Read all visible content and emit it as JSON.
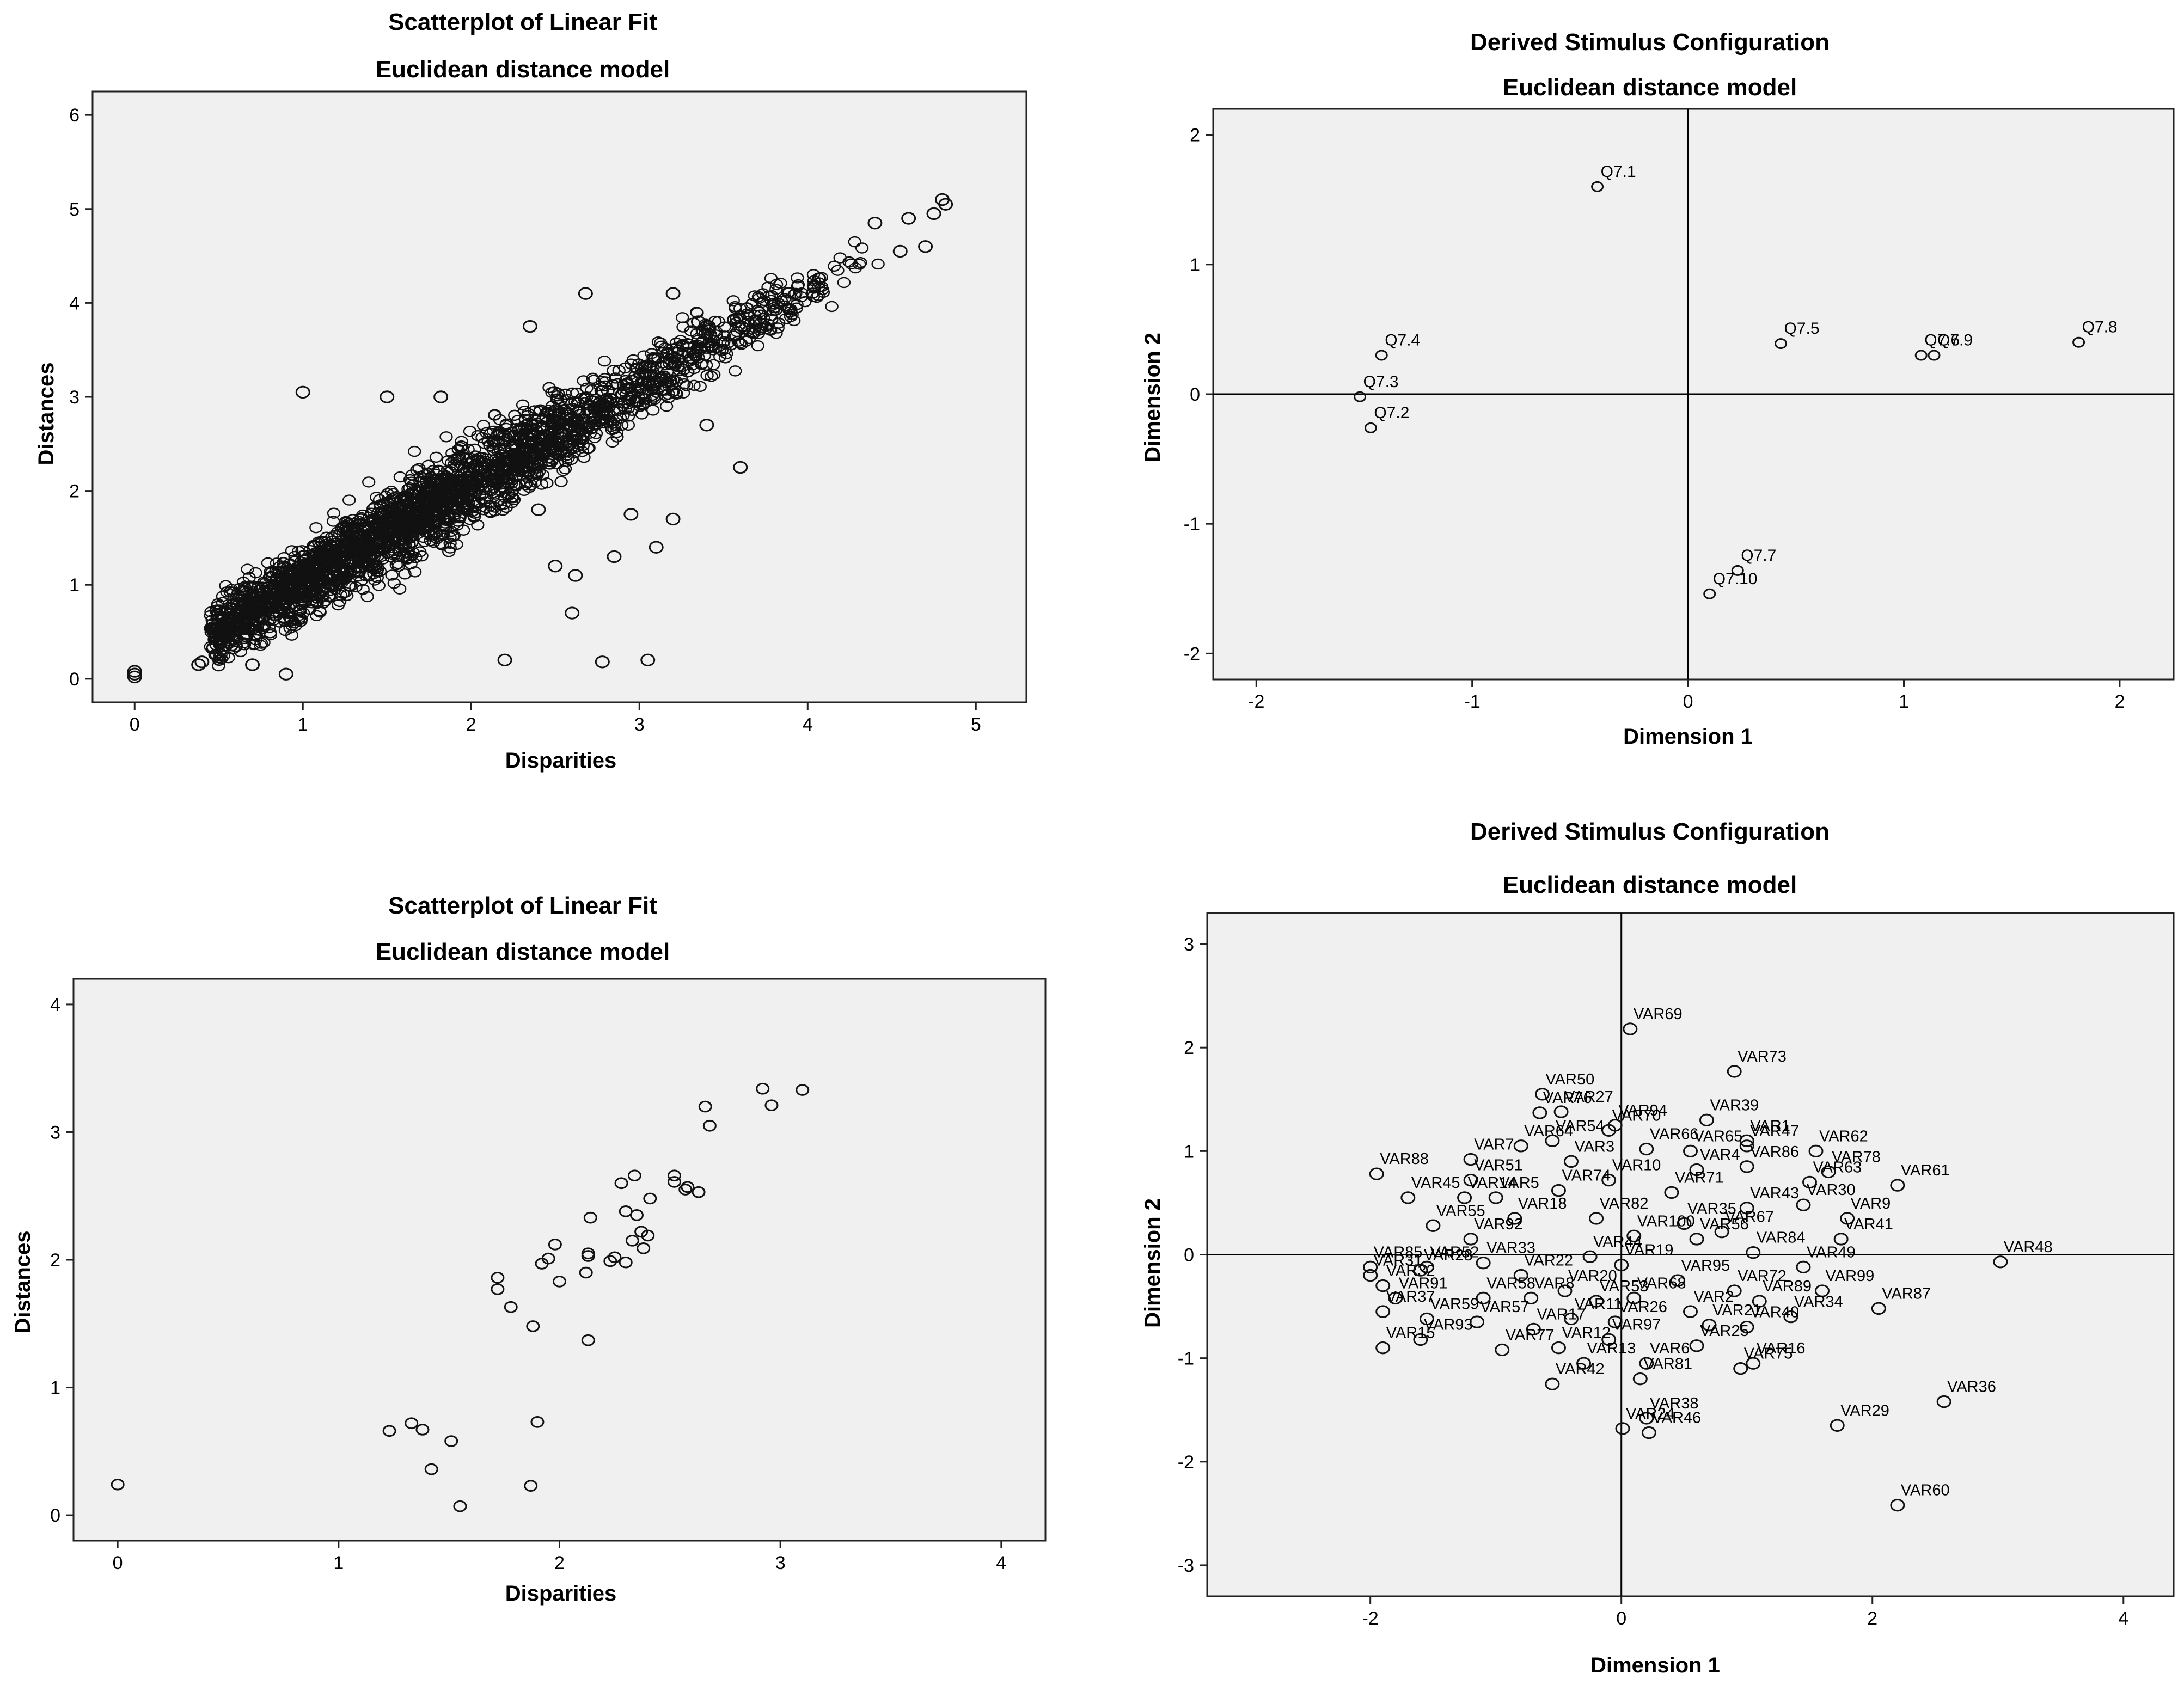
{
  "chart_data": [
    {
      "id": "tl",
      "type": "scatter",
      "title": "Scatterplot of Linear Fit",
      "subtitle": "Euclidean distance model",
      "xlabel": "Disparities",
      "ylabel": "Distances",
      "xlim": [
        -0.25,
        5.3
      ],
      "ylim": [
        -0.25,
        6.25
      ],
      "xticks": [
        0,
        1,
        2,
        3,
        4,
        5
      ],
      "yticks": [
        0,
        1,
        2,
        3,
        4,
        5,
        6
      ],
      "background": "#ebebeb",
      "density_note": "dense cloud of several thousand points along the diagonal",
      "points": [
        [
          0,
          0.02
        ],
        [
          0,
          0.05
        ],
        [
          0,
          0.08
        ],
        [
          0.38,
          0.15
        ],
        [
          0.4,
          0.18
        ],
        [
          4.82,
          5.05
        ],
        [
          4.8,
          5.1
        ],
        [
          4.75,
          4.95
        ],
        [
          4.6,
          4.9
        ],
        [
          4.55,
          4.55
        ],
        [
          4.7,
          4.6
        ],
        [
          4.4,
          4.85
        ],
        [
          1.0,
          3.05
        ],
        [
          1.5,
          3.0
        ],
        [
          1.82,
          3.0
        ],
        [
          2.35,
          3.75
        ],
        [
          2.68,
          4.1
        ],
        [
          3.2,
          4.1
        ],
        [
          3.35,
          3.8
        ],
        [
          3.6,
          2.25
        ],
        [
          3.1,
          1.4
        ],
        [
          3.05,
          0.2
        ],
        [
          2.78,
          0.18
        ],
        [
          2.5,
          1.2
        ],
        [
          2.2,
          0.2
        ],
        [
          2.6,
          0.7
        ],
        [
          2.95,
          1.75
        ],
        [
          3.4,
          2.7
        ],
        [
          2.62,
          1.1
        ],
        [
          2.4,
          1.8
        ],
        [
          2.85,
          1.3
        ],
        [
          3.2,
          1.7
        ],
        [
          0.7,
          0.15
        ],
        [
          0.9,
          0.05
        ],
        [
          0.6,
          0.35
        ]
      ]
    },
    {
      "id": "tr",
      "type": "scatter",
      "title": "Derived Stimulus Configuration",
      "subtitle": "Euclidean distance model",
      "xlabel": "Dimension 1",
      "ylabel": "Dimension 2",
      "xlim": [
        -2.2,
        2.25
      ],
      "ylim": [
        -2.2,
        2.2
      ],
      "xticks": [
        -2,
        -1,
        0,
        1,
        2
      ],
      "yticks": [
        -2,
        -1,
        0,
        1,
        2
      ],
      "points": [
        {
          "label": "Q7.1",
          "x": -0.42,
          "y": 1.6
        },
        {
          "label": "Q7.4",
          "x": -1.42,
          "y": 0.3
        },
        {
          "label": "Q7.3",
          "x": -1.52,
          "y": -0.02
        },
        {
          "label": "Q7.2",
          "x": -1.47,
          "y": -0.26
        },
        {
          "label": "Q7.5",
          "x": 0.43,
          "y": 0.39
        },
        {
          "label": "Q7.9",
          "x": 1.14,
          "y": 0.3
        },
        {
          "label": "Q7.6",
          "x": 1.08,
          "y": 0.3
        },
        {
          "label": "Q7.8",
          "x": 1.81,
          "y": 0.4
        },
        {
          "label": "Q7.7",
          "x": 0.23,
          "y": -1.36
        },
        {
          "label": "Q7.10",
          "x": 0.1,
          "y": -1.54
        }
      ]
    },
    {
      "id": "bl",
      "type": "scatter",
      "title": "Scatterplot of Linear Fit",
      "subtitle": "Euclidean distance model",
      "xlabel": "Disparities",
      "ylabel": "Distances",
      "xlim": [
        -0.2,
        4.2
      ],
      "ylim": [
        -0.2,
        4.2
      ],
      "xticks": [
        0,
        1,
        2,
        3,
        4
      ],
      "yticks": [
        0,
        1,
        2,
        3,
        4
      ],
      "points": [
        [
          0,
          0.24
        ],
        [
          1.23,
          0.66
        ],
        [
          1.33,
          0.72
        ],
        [
          1.38,
          0.67
        ],
        [
          1.42,
          0.36
        ],
        [
          1.51,
          0.58
        ],
        [
          1.55,
          0.07
        ],
        [
          1.87,
          0.23
        ],
        [
          1.9,
          0.73
        ],
        [
          1.72,
          1.86
        ],
        [
          1.72,
          1.77
        ],
        [
          1.78,
          1.63
        ],
        [
          1.88,
          1.48
        ],
        [
          1.92,
          1.97
        ],
        [
          1.95,
          2.01
        ],
        [
          1.98,
          2.12
        ],
        [
          2.0,
          1.83
        ],
        [
          2.12,
          1.9
        ],
        [
          2.13,
          2.03
        ],
        [
          2.13,
          2.05
        ],
        [
          2.14,
          2.33
        ],
        [
          2.13,
          1.37
        ],
        [
          2.23,
          1.99
        ],
        [
          2.25,
          2.02
        ],
        [
          2.28,
          2.6
        ],
        [
          2.3,
          1.98
        ],
        [
          2.3,
          2.38
        ],
        [
          2.33,
          2.15
        ],
        [
          2.34,
          2.66
        ],
        [
          2.35,
          2.35
        ],
        [
          2.37,
          2.22
        ],
        [
          2.38,
          2.09
        ],
        [
          2.4,
          2.19
        ],
        [
          2.41,
          2.48
        ],
        [
          2.52,
          2.66
        ],
        [
          2.52,
          2.61
        ],
        [
          2.57,
          2.55
        ],
        [
          2.58,
          2.57
        ],
        [
          2.63,
          2.53
        ],
        [
          2.66,
          3.2
        ],
        [
          2.68,
          3.05
        ],
        [
          2.92,
          3.34
        ],
        [
          2.96,
          3.21
        ],
        [
          3.1,
          3.33
        ]
      ]
    },
    {
      "id": "br",
      "type": "scatter",
      "title": "Derived Stimulus Configuration",
      "subtitle": "Euclidean distance model",
      "xlabel": "Dimension 1",
      "ylabel": "Dimension 2",
      "xlim": [
        -3.3,
        4.4
      ],
      "ylim": [
        -3.3,
        3.3
      ],
      "xticks": [
        -2,
        0,
        2,
        4
      ],
      "yticks": [
        -3,
        -2,
        -1,
        0,
        1,
        2,
        3
      ],
      "points": [
        {
          "label": "VAR69",
          "x": 0.07,
          "y": 2.18
        },
        {
          "label": "VAR73",
          "x": 0.9,
          "y": 1.77
        },
        {
          "label": "VAR50",
          "x": -0.63,
          "y": 1.55
        },
        {
          "label": "VAR27",
          "x": -0.48,
          "y": 1.38
        },
        {
          "label": "VAR94",
          "x": -0.05,
          "y": 1.25
        },
        {
          "label": "VAR39",
          "x": 0.68,
          "y": 1.3
        },
        {
          "label": "VAR1",
          "x": 1.0,
          "y": 1.1
        },
        {
          "label": "VAR62",
          "x": 1.55,
          "y": 1.0
        },
        {
          "label": "VAR76",
          "x": -0.65,
          "y": 1.37
        },
        {
          "label": "VAR70",
          "x": -0.1,
          "y": 1.2
        },
        {
          "label": "VAR47",
          "x": 1.0,
          "y": 1.05
        },
        {
          "label": "VAR7",
          "x": -1.2,
          "y": 0.92
        },
        {
          "label": "VAR64",
          "x": -0.8,
          "y": 1.05
        },
        {
          "label": "VAR54",
          "x": -0.55,
          "y": 1.1
        },
        {
          "label": "VAR66",
          "x": 0.2,
          "y": 1.02
        },
        {
          "label": "VAR65",
          "x": 0.55,
          "y": 1.0
        },
        {
          "label": "VAR3",
          "x": -0.4,
          "y": 0.9
        },
        {
          "label": "VAR88",
          "x": -1.95,
          "y": 0.78
        },
        {
          "label": "VAR4",
          "x": 0.6,
          "y": 0.82
        },
        {
          "label": "VAR86",
          "x": 1.0,
          "y": 0.85
        },
        {
          "label": "VAR78",
          "x": 1.65,
          "y": 0.8
        },
        {
          "label": "VAR61",
          "x": 2.2,
          "y": 0.67
        },
        {
          "label": "VAR51",
          "x": -1.2,
          "y": 0.72
        },
        {
          "label": "VAR10",
          "x": -0.1,
          "y": 0.72
        },
        {
          "label": "VAR63",
          "x": 1.5,
          "y": 0.7
        },
        {
          "label": "VAR45",
          "x": -1.7,
          "y": 0.55
        },
        {
          "label": "VAR14",
          "x": -1.25,
          "y": 0.55
        },
        {
          "label": "VAR5",
          "x": -1.0,
          "y": 0.55
        },
        {
          "label": "VAR74",
          "x": -0.5,
          "y": 0.62
        },
        {
          "label": "VAR71",
          "x": 0.4,
          "y": 0.6
        },
        {
          "label": "VAR43",
          "x": 1.0,
          "y": 0.45
        },
        {
          "label": "VAR30",
          "x": 1.45,
          "y": 0.48
        },
        {
          "label": "VAR9",
          "x": 1.8,
          "y": 0.35
        },
        {
          "label": "VAR55",
          "x": -1.5,
          "y": 0.28
        },
        {
          "label": "VAR18",
          "x": -0.85,
          "y": 0.35
        },
        {
          "label": "VAR82",
          "x": -0.2,
          "y": 0.35
        },
        {
          "label": "VAR35",
          "x": 0.5,
          "y": 0.3
        },
        {
          "label": "VAR67",
          "x": 0.8,
          "y": 0.22
        },
        {
          "label": "VAR41",
          "x": 1.75,
          "y": 0.15
        },
        {
          "label": "VAR48",
          "x": 3.02,
          "y": -0.07
        },
        {
          "label": "VAR85",
          "x": -2.0,
          "y": -0.12
        },
        {
          "label": "VAR52",
          "x": -1.55,
          "y": -0.12
        },
        {
          "label": "VAR92",
          "x": -1.2,
          "y": 0.15
        },
        {
          "label": "VAR100",
          "x": 0.1,
          "y": 0.18
        },
        {
          "label": "VAR56",
          "x": 0.6,
          "y": 0.15
        },
        {
          "label": "VAR84",
          "x": 1.05,
          "y": 0.02
        },
        {
          "label": "VAR49",
          "x": 1.45,
          "y": -0.12
        },
        {
          "label": "VAR32",
          "x": -1.9,
          "y": -0.3
        },
        {
          "label": "VAR28",
          "x": -1.6,
          "y": -0.15
        },
        {
          "label": "VAR33",
          "x": -1.1,
          "y": -0.08
        },
        {
          "label": "VAR44",
          "x": -0.25,
          "y": -0.02
        },
        {
          "label": "VAR19",
          "x": 0.0,
          "y": -0.1
        },
        {
          "label": "VAR95",
          "x": 0.45,
          "y": -0.25
        },
        {
          "label": "VAR72",
          "x": 0.9,
          "y": -0.35
        },
        {
          "label": "VAR89",
          "x": 1.1,
          "y": -0.45
        },
        {
          "label": "VAR99",
          "x": 1.6,
          "y": -0.35
        },
        {
          "label": "VAR87",
          "x": 2.05,
          "y": -0.52
        },
        {
          "label": "VAR31",
          "x": -2.0,
          "y": -0.2
        },
        {
          "label": "VAR22",
          "x": -0.8,
          "y": -0.2
        },
        {
          "label": "VAR91",
          "x": -1.8,
          "y": -0.42
        },
        {
          "label": "VAR58",
          "x": -1.1,
          "y": -0.42
        },
        {
          "label": "VAR8",
          "x": -0.72,
          "y": -0.42
        },
        {
          "label": "VAR20",
          "x": -0.45,
          "y": -0.35
        },
        {
          "label": "VAR53",
          "x": -0.2,
          "y": -0.45
        },
        {
          "label": "VAR68",
          "x": 0.1,
          "y": -0.42
        },
        {
          "label": "VAR2",
          "x": 0.55,
          "y": -0.55
        },
        {
          "label": "VAR34",
          "x": 1.35,
          "y": -0.6
        },
        {
          "label": "VAR59",
          "x": -1.55,
          "y": -0.62
        },
        {
          "label": "VAR11",
          "x": -0.4,
          "y": -0.62
        },
        {
          "label": "VAR26",
          "x": -0.05,
          "y": -0.65
        },
        {
          "label": "VAR21",
          "x": 0.7,
          "y": -0.68
        },
        {
          "label": "VAR40",
          "x": 1.0,
          "y": -0.7
        },
        {
          "label": "VAR37",
          "x": -1.9,
          "y": -0.55
        },
        {
          "label": "VAR93",
          "x": -1.6,
          "y": -0.82
        },
        {
          "label": "VAR57",
          "x": -1.15,
          "y": -0.65
        },
        {
          "label": "VAR17",
          "x": -0.7,
          "y": -0.72
        },
        {
          "label": "VAR97",
          "x": -0.1,
          "y": -0.82
        },
        {
          "label": "VAR25",
          "x": 0.6,
          "y": -0.88
        },
        {
          "label": "VAR12",
          "x": -0.5,
          "y": -0.9
        },
        {
          "label": "VAR16",
          "x": 1.05,
          "y": -1.05
        },
        {
          "label": "VAR15",
          "x": -1.9,
          "y": -0.9
        },
        {
          "label": "VAR77",
          "x": -0.95,
          "y": -0.92
        },
        {
          "label": "VAR13",
          "x": -0.3,
          "y": -1.05
        },
        {
          "label": "VAR6",
          "x": 0.2,
          "y": -1.05
        },
        {
          "label": "VAR42",
          "x": -0.55,
          "y": -1.25
        },
        {
          "label": "VAR81",
          "x": 0.15,
          "y": -1.2
        },
        {
          "label": "VAR75",
          "x": 0.95,
          "y": -1.1
        },
        {
          "label": "VAR36",
          "x": 2.57,
          "y": -1.42
        },
        {
          "label": "VAR29",
          "x": 1.72,
          "y": -1.65
        },
        {
          "label": "VAR38",
          "x": 0.2,
          "y": -1.58
        },
        {
          "label": "VAR24",
          "x": 0.01,
          "y": -1.68
        },
        {
          "label": "VAR46",
          "x": 0.22,
          "y": -1.72
        },
        {
          "label": "VAR60",
          "x": 2.2,
          "y": -2.42
        }
      ]
    }
  ]
}
